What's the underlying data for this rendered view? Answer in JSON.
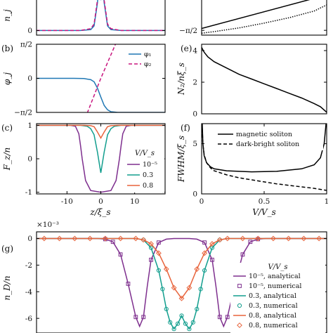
{
  "chart_data": [
    {
      "id": "top-left",
      "type": "line",
      "panel_label": "",
      "ylabel": "n_j",
      "ytick_labels": [
        "0",
        "0.5"
      ],
      "y": [
        0,
        0.5
      ],
      "ylim": [
        -0.05,
        0.56
      ],
      "xlim": [
        -19,
        19
      ],
      "series": [
        {
          "name": "",
          "color": "#1f77b4",
          "dash": "solid",
          "x": [
            -19,
            -6,
            -3,
            -2,
            -1,
            -0.5,
            0,
            0.5,
            1,
            2,
            3,
            6,
            19
          ],
          "y": [
            0,
            0,
            0.01,
            0.05,
            0.3,
            0.52,
            0.33,
            0.52,
            0.3,
            0.05,
            0.01,
            0,
            0
          ]
        },
        {
          "name": "",
          "color": "#c8157f",
          "dash": "dashed",
          "x": [
            -19,
            -6,
            -3,
            -2,
            -1,
            -0.5,
            0,
            0.5,
            1,
            2,
            3,
            6,
            19
          ],
          "y": [
            0,
            0,
            0.02,
            0.07,
            0.33,
            0.55,
            0.6,
            0.55,
            0.33,
            0.07,
            0.02,
            0,
            0
          ]
        }
      ]
    },
    {
      "id": "top-right",
      "type": "line",
      "panel_label": "",
      "ytick_labels": [
        "0",
        "−π/2"
      ],
      "y": [
        0,
        -1.5708
      ],
      "ylim": [
        -1.75,
        0.35
      ],
      "xlim": [
        0,
        1
      ],
      "series": [
        {
          "name": "",
          "color": "#000000",
          "dash": "solid",
          "x": [
            0,
            1
          ],
          "y": [
            -1.5,
            -0.25
          ]
        },
        {
          "name": "",
          "color": "#000000",
          "dash": "dotted",
          "x": [
            0,
            0.1,
            0.3,
            0.5,
            0.7,
            0.9,
            1
          ],
          "y": [
            -1.68,
            -1.62,
            -1.48,
            -1.3,
            -1.1,
            -0.85,
            -0.62
          ]
        },
        {
          "name": "",
          "color": "#000000",
          "dash": "dashed",
          "x": [
            0,
            0.12,
            0.25,
            0.32
          ],
          "y": [
            -0.05,
            0.1,
            0.24,
            0.38
          ]
        }
      ]
    },
    {
      "id": "b",
      "type": "line",
      "panel_label": "(b)",
      "ylabel": "φ_j",
      "ytick_labels": [
        "π/2",
        "0",
        "−π/2"
      ],
      "y": [
        1.5708,
        0,
        -1.5708
      ],
      "ylim": [
        -1.5708,
        1.5708
      ],
      "xlim": [
        -19,
        19
      ],
      "legend": {
        "position": "top-right",
        "entries": [
          "φ₁",
          "φ₂"
        ]
      },
      "series": [
        {
          "name": "φ₁",
          "color": "#1f77b4",
          "dash": "solid",
          "x": [
            -19,
            -8,
            -5,
            -3,
            -2,
            -1,
            0,
            1,
            2,
            3,
            5,
            8,
            19
          ],
          "y": [
            0,
            0,
            -0.01,
            -0.06,
            -0.16,
            -0.45,
            -0.86,
            -1.25,
            -1.45,
            -1.54,
            -1.57,
            -1.57,
            -1.57
          ]
        },
        {
          "name": "φ₂",
          "color": "#c8157f",
          "dash": "dashed",
          "x": [
            -4,
            0,
            4.4
          ],
          "y": [
            -1.6,
            0,
            1.6
          ]
        }
      ]
    },
    {
      "id": "e",
      "type": "line",
      "panel_label": "(e)",
      "ylabel": "N₂/nξ_s",
      "xlim": [
        0,
        1
      ],
      "ytick_labels": [
        "4",
        "2",
        "0"
      ],
      "y": [
        4,
        2,
        0
      ],
      "ylim": [
        0,
        4.4
      ],
      "series": [
        {
          "name": "",
          "color": "#000000",
          "dash": "solid",
          "x": [
            0,
            0.02,
            0.05,
            0.1,
            0.2,
            0.3,
            0.4,
            0.5,
            0.6,
            0.7,
            0.8,
            0.9,
            0.95,
            1
          ],
          "y": [
            4.2,
            3.9,
            3.6,
            3.3,
            2.9,
            2.5,
            2.2,
            1.9,
            1.6,
            1.3,
            1.0,
            0.65,
            0.45,
            0.1
          ]
        }
      ]
    },
    {
      "id": "c",
      "type": "line",
      "panel_label": "(c)",
      "ylabel": "F_z/n",
      "xlabel": "z/ξ_s",
      "xticks": [
        -10,
        0,
        10
      ],
      "xtick_labels": [
        "-10",
        "0",
        "10"
      ],
      "xlim": [
        -19,
        19
      ],
      "ytick_labels": [
        "1",
        "0",
        "-1"
      ],
      "y": [
        1,
        0,
        -1
      ],
      "ylim": [
        -1.05,
        1.05
      ],
      "legend": {
        "title": "V/V_s",
        "position": "bottom-right",
        "entries": [
          "10⁻⁵",
          "0.3",
          "0.8"
        ]
      },
      "series": [
        {
          "name": "10⁻⁵",
          "color": "#7e2f8e",
          "dash": "solid",
          "x": [
            -19,
            -9,
            -7.5,
            -6.5,
            -6,
            -5.5,
            -4.5,
            -3,
            0,
            3,
            4.5,
            5.5,
            6,
            6.5,
            7.5,
            9,
            19
          ],
          "y": [
            1,
            1,
            0.97,
            0.75,
            0.4,
            0,
            -0.65,
            -0.95,
            -1,
            -0.95,
            -0.65,
            0,
            0.4,
            0.75,
            0.97,
            1,
            1
          ]
        },
        {
          "name": "0.3",
          "color": "#129e8e",
          "dash": "solid",
          "x": [
            -19,
            -6,
            -4,
            -3,
            -2,
            -1,
            0,
            1,
            2,
            3,
            4,
            6,
            19
          ],
          "y": [
            1,
            1,
            0.97,
            0.9,
            0.72,
            0.2,
            -0.42,
            0.2,
            0.72,
            0.9,
            0.97,
            1,
            1
          ]
        },
        {
          "name": "0.8",
          "color": "#e8643c",
          "dash": "solid",
          "x": [
            -19,
            -5,
            -3,
            -2,
            -1,
            0,
            1,
            2,
            3,
            5,
            19
          ],
          "y": [
            1,
            1,
            0.99,
            0.96,
            0.8,
            0.62,
            0.8,
            0.96,
            0.99,
            1,
            1
          ]
        }
      ]
    },
    {
      "id": "f",
      "type": "line",
      "panel_label": "(f)",
      "ylabel": "FWHM/ξ_s",
      "xlabel": "V/V_s",
      "xticks": [
        0,
        0.5,
        1
      ],
      "xtick_labels": [
        "0",
        "0.5",
        "1"
      ],
      "xlim": [
        0,
        1
      ],
      "ytick_labels": [
        "5",
        "0"
      ],
      "y": [
        5,
        0
      ],
      "ylim": [
        0,
        7
      ],
      "legend": {
        "position": "top-right",
        "entries": [
          "magnetic soliton",
          "dark-bright soliton"
        ]
      },
      "series": [
        {
          "name": "magnetic soliton",
          "color": "#000000",
          "dash": "solid",
          "x": [
            0.005,
            0.01,
            0.02,
            0.04,
            0.07,
            0.1,
            0.2,
            0.4,
            0.6,
            0.8,
            0.9,
            0.95,
            0.98,
            0.995
          ],
          "y": [
            7,
            5,
            3.8,
            3.1,
            2.7,
            2.5,
            2.3,
            2.2,
            2.25,
            2.5,
            2.9,
            3.6,
            5,
            7
          ]
        },
        {
          "name": "dark-bright soliton",
          "color": "#000000",
          "dash": "dashed",
          "x": [
            0.005,
            0.01,
            0.02,
            0.04,
            0.07,
            0.1,
            0.2,
            0.3,
            0.4,
            0.5,
            0.6,
            0.7,
            0.8,
            0.9,
            1
          ],
          "y": [
            6.5,
            5,
            3.9,
            3.1,
            2.6,
            2.3,
            1.9,
            1.6,
            1.4,
            1.2,
            1.0,
            0.85,
            0.7,
            0.55,
            0.35
          ]
        }
      ]
    },
    {
      "id": "g",
      "type": "line",
      "panel_label": "(g)",
      "ylabel": "n_D/n",
      "exponent_label": "×10⁻³",
      "ytick_labels": [
        "0",
        "-2",
        "-4",
        "-6"
      ],
      "y": [
        0,
        -2,
        -4,
        -6
      ],
      "ylim": [
        -7.1,
        0.5
      ],
      "xlim": [
        -19,
        19
      ],
      "legend": {
        "title": "V/V_s",
        "position": "bottom-right",
        "entries": [
          "10⁻⁵, analytical",
          "10⁻⁵, numerical",
          "0.3, analytical",
          "0.3, numerical",
          "0.8, analytical",
          "0.8, numerical"
        ]
      },
      "series": [
        {
          "name": "10⁻⁵, analytical",
          "color": "#7e2f8e",
          "marker": "none",
          "x": [
            -19,
            -11,
            -10,
            -9,
            -8,
            -7,
            -6,
            -5.5,
            -5,
            -4.5,
            -4,
            -3,
            -2,
            -1,
            0,
            1,
            2,
            3,
            4,
            4.5,
            5,
            5.5,
            6,
            7,
            8,
            9,
            10,
            11,
            19
          ],
          "y": [
            0,
            0,
            -0.05,
            -0.25,
            -1.2,
            -3.4,
            -5.9,
            -6.6,
            -5.9,
            -3.6,
            -1.6,
            -0.3,
            -0.05,
            0,
            0,
            0,
            -0.05,
            -0.3,
            -1.6,
            -3.6,
            -5.9,
            -6.6,
            -5.9,
            -3.4,
            -1.2,
            -0.25,
            -0.05,
            0,
            0
          ]
        },
        {
          "name": "10⁻⁵, numerical",
          "color": "#7e2f8e",
          "marker": "square",
          "x": [
            -10,
            -9,
            -8,
            -7,
            -6,
            -5,
            -4,
            -3,
            3,
            4,
            5,
            6,
            7,
            8,
            9,
            10
          ],
          "y": [
            -0.05,
            -0.25,
            -1.2,
            -3.4,
            -5.9,
            -5.9,
            -1.6,
            -0.3,
            -0.3,
            -1.6,
            -5.9,
            -5.9,
            -3.4,
            -1.2,
            -0.25,
            -0.05
          ]
        },
        {
          "name": "0.3, analytical",
          "color": "#129e8e",
          "marker": "none",
          "x": [
            -19,
            -6,
            -5,
            -4,
            -3,
            -2.5,
            -2,
            -1.5,
            -1,
            -0.5,
            0,
            0.5,
            1,
            1.5,
            2,
            2.5,
            3,
            4,
            5,
            6,
            19
          ],
          "y": [
            0,
            0,
            -0.1,
            -0.7,
            -2.4,
            -3.8,
            -5.3,
            -6.3,
            -6.8,
            -6.4,
            -5.8,
            -6.4,
            -6.8,
            -6.3,
            -5.3,
            -3.8,
            -2.4,
            -0.7,
            -0.1,
            0,
            0
          ]
        },
        {
          "name": "0.3, numerical",
          "color": "#129e8e",
          "marker": "circle",
          "x": [
            -5,
            -4,
            -3,
            -2.5,
            -2,
            -1.5,
            -1,
            -0.5,
            0,
            0.5,
            1,
            1.5,
            2,
            2.5,
            3,
            4,
            5
          ],
          "y": [
            -0.1,
            -0.7,
            -2.4,
            -3.8,
            -5.3,
            -6.3,
            -6.8,
            -6.4,
            -5.8,
            -6.4,
            -6.8,
            -6.3,
            -5.3,
            -3.8,
            -2.4,
            -0.7,
            -0.1
          ]
        },
        {
          "name": "0.8, analytical",
          "color": "#e8643c",
          "marker": "none",
          "x": [
            -19,
            -6,
            -5,
            -4,
            -3,
            -2,
            -1,
            0,
            1,
            2,
            3,
            4,
            5,
            6,
            19
          ],
          "y": [
            0,
            0,
            -0.1,
            -0.4,
            -1.1,
            -2.3,
            -3.7,
            -4.5,
            -3.7,
            -2.3,
            -1.1,
            -0.4,
            -0.1,
            0,
            0
          ]
        },
        {
          "name": "0.8, numerical",
          "color": "#e8643c",
          "marker": "diamond",
          "x": [
            -18,
            -16,
            -14,
            -12,
            -10,
            -8,
            -6,
            -5,
            -4,
            -3,
            -2,
            -1,
            0,
            1,
            2,
            3,
            4,
            5,
            6,
            8,
            10,
            12,
            14,
            16,
            18
          ],
          "y": [
            0,
            0,
            0,
            0,
            0,
            0,
            0,
            -0.1,
            -0.4,
            -1.1,
            -2.3,
            -3.7,
            -4.5,
            -3.7,
            -2.3,
            -1.1,
            -0.4,
            -0.1,
            0,
            0,
            0,
            0,
            0,
            0,
            0
          ]
        }
      ]
    }
  ]
}
